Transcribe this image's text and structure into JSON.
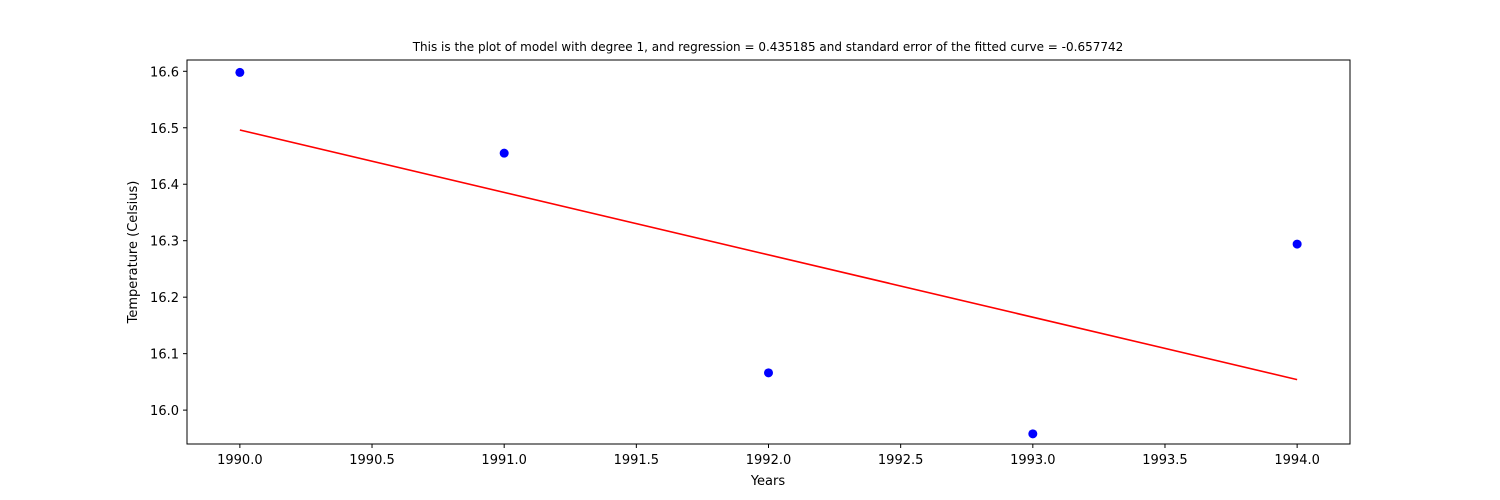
{
  "chart_data": {
    "type": "scatter",
    "title": "This is the plot of model with degree 1, and regression = 0.435185 and standard error of the fitted curve = -0.657742",
    "xlabel": "Years",
    "ylabel": "Temperature (Celsius)",
    "xlim": [
      1989.8,
      1994.2
    ],
    "ylim": [
      15.94,
      16.62
    ],
    "xticks": [
      "1990.0",
      "1990.5",
      "1991.0",
      "1991.5",
      "1992.0",
      "1992.5",
      "1993.0",
      "1993.5",
      "1994.0"
    ],
    "yticks": [
      "16.0",
      "16.1",
      "16.2",
      "16.3",
      "16.4",
      "16.5",
      "16.6"
    ],
    "grid": false,
    "series": [
      {
        "kind": "points",
        "color": "#0000ff",
        "x": [
          1990,
          1991,
          1992,
          1993,
          1994
        ],
        "y": [
          16.598,
          16.455,
          16.066,
          15.958,
          16.294
        ]
      },
      {
        "kind": "line",
        "color": "#ff0000",
        "x": [
          1990,
          1994
        ],
        "y": [
          16.496,
          16.054
        ]
      }
    ]
  }
}
